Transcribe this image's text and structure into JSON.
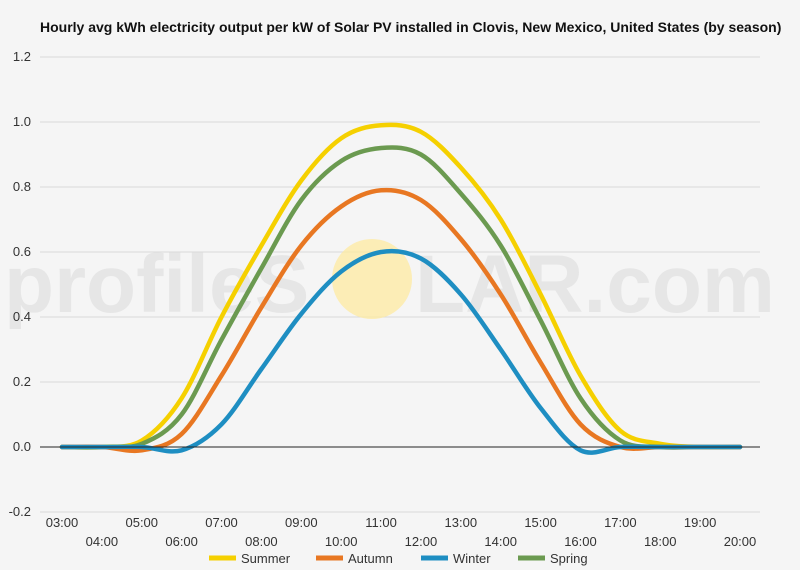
{
  "chart_data": {
    "type": "line",
    "title": "Hourly avg kWh electricity output per kW of Solar PV installed in Clovis, New Mexico, United States (by season)",
    "xlabel": "",
    "ylabel": "",
    "ylim": [
      -0.2,
      1.2
    ],
    "yticks": [
      -0.2,
      0.0,
      0.2,
      0.4,
      0.6,
      0.8,
      1.0,
      1.2
    ],
    "ytick_labels": [
      "-0.2",
      "0.0",
      "0.2",
      "0.4",
      "0.6",
      "0.8",
      "1.0",
      "1.2"
    ],
    "xticks_upper": [
      "03:00",
      "05:00",
      "07:00",
      "09:00",
      "11:00",
      "13:00",
      "15:00",
      "17:00",
      "19:00"
    ],
    "xticks_lower": [
      "04:00",
      "06:00",
      "08:00",
      "10:00",
      "12:00",
      "14:00",
      "16:00",
      "18:00",
      "20:00"
    ],
    "x": [
      "03:00",
      "04:00",
      "05:00",
      "06:00",
      "07:00",
      "08:00",
      "09:00",
      "10:00",
      "11:00",
      "12:00",
      "13:00",
      "14:00",
      "15:00",
      "16:00",
      "17:00",
      "18:00",
      "19:00",
      "20:00"
    ],
    "grid": true,
    "legend_position": "bottom",
    "series": [
      {
        "name": "Summer",
        "color": "#f5d000",
        "values": [
          0.0,
          0.0,
          0.02,
          0.15,
          0.4,
          0.62,
          0.82,
          0.95,
          0.99,
          0.97,
          0.86,
          0.7,
          0.47,
          0.22,
          0.05,
          0.01,
          0.0,
          0.0
        ]
      },
      {
        "name": "Autumn",
        "color": "#e87722",
        "values": [
          0.0,
          0.0,
          -0.01,
          0.04,
          0.22,
          0.43,
          0.62,
          0.74,
          0.79,
          0.76,
          0.64,
          0.47,
          0.26,
          0.07,
          0.0,
          0.0,
          0.0,
          0.0
        ]
      },
      {
        "name": "Winter",
        "color": "#1e8ec2",
        "values": [
          0.0,
          0.0,
          0.0,
          -0.01,
          0.07,
          0.24,
          0.41,
          0.54,
          0.6,
          0.58,
          0.47,
          0.3,
          0.12,
          -0.01,
          0.0,
          0.0,
          0.0,
          0.0
        ]
      },
      {
        "name": "Spring",
        "color": "#6b9a50",
        "values": [
          0.0,
          0.0,
          0.01,
          0.1,
          0.33,
          0.55,
          0.76,
          0.88,
          0.92,
          0.9,
          0.78,
          0.62,
          0.39,
          0.15,
          0.02,
          0.0,
          0.0,
          0.0
        ]
      }
    ]
  },
  "watermark": {
    "text_left": "profileS",
    "text_right": "LAR.com",
    "sun_color": "#fde9a0"
  }
}
